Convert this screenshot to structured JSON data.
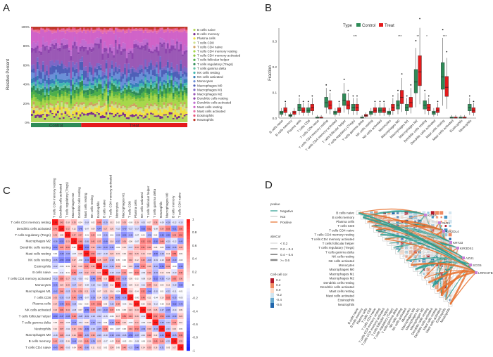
{
  "panels": {
    "a": "A",
    "b": "B",
    "c": "C",
    "d": "D"
  },
  "chart_data": [
    {
      "type": "bar",
      "panel": "A",
      "ylabel": "Relative Percent",
      "yticks": [
        "0%",
        "20%",
        "40%",
        "60%",
        "80%",
        "100%"
      ],
      "ylim": [
        0,
        100
      ],
      "groups": [
        {
          "name": "Control",
          "color": "#2e8b57",
          "n_samples": 27
        },
        {
          "name": "Treat",
          "color": "#e41a1c",
          "n_samples": 57
        }
      ],
      "legend_placement": "right",
      "cell_types": [
        {
          "name": "B cells naive",
          "color": "#b4d85b",
          "mean": 6
        },
        {
          "name": "B cells memory",
          "color": "#7b2e8f",
          "mean": 2
        },
        {
          "name": "Plasma cells",
          "color": "#f0e040",
          "mean": 5
        },
        {
          "name": "T cells CD8",
          "color": "#cfe090",
          "mean": 3
        },
        {
          "name": "T cells CD4 naive",
          "color": "#d0a060",
          "mean": 2
        },
        {
          "name": "T cells CD4 memory resting",
          "color": "#a6d84a",
          "mean": 6
        },
        {
          "name": "T cells CD4 memory activated",
          "color": "#8cc63f",
          "mean": 3
        },
        {
          "name": "T cells follicular helper",
          "color": "#4daf4a",
          "mean": 4
        },
        {
          "name": "T cells regulatory (Tregs)",
          "color": "#2e8b57",
          "mean": 4
        },
        {
          "name": "T cells gamma delta",
          "color": "#66c2a5",
          "mean": 2
        },
        {
          "name": "NK cells resting",
          "color": "#3fb8b0",
          "mean": 3
        },
        {
          "name": "NK cells activated",
          "color": "#377eb8",
          "mean": 3
        },
        {
          "name": "Monocytes",
          "color": "#6a8fd8",
          "mean": 5
        },
        {
          "name": "Macrophages M0",
          "color": "#4e5fb8",
          "mean": 6
        },
        {
          "name": "Macrophages M1",
          "color": "#7b68c8",
          "mean": 4
        },
        {
          "name": "Macrophages M2",
          "color": "#9b59b6",
          "mean": 16
        },
        {
          "name": "Dendritic cells resting",
          "color": "#8e44ad",
          "mean": 4
        },
        {
          "name": "Dendritic cells activated",
          "color": "#c06cd0",
          "mean": 5
        },
        {
          "name": "Mast cells resting",
          "color": "#d063c8",
          "mean": 12
        },
        {
          "name": "Mast cells activated",
          "color": "#e76fa8",
          "mean": 2
        },
        {
          "name": "Eosinophils",
          "color": "#e8527a",
          "mean": 1
        },
        {
          "name": "Neutrophils",
          "color": "#c0392b",
          "mean": 2
        }
      ]
    },
    {
      "type": "box",
      "panel": "B",
      "ylabel": "Fraction",
      "legend_title": "Type",
      "yticks": [
        "0.0",
        "0.1",
        "0.2",
        "0.3"
      ],
      "ylim": [
        0,
        0.35
      ],
      "series": [
        {
          "name": "Control",
          "color": "#2e8b57"
        },
        {
          "name": "Treat",
          "color": "#e41a1c"
        }
      ],
      "categories": [
        "B cells naive",
        "B cells memory",
        "Plasma cells",
        "T cells CD8",
        "T cells CD4 naive",
        "T cells CD4 memory resting",
        "T cells CD4 memory activated",
        "T cells follicular helper",
        "T cells regulatory (Tregs)",
        "T cells gamma delta",
        "NK cells resting",
        "NK cells activated",
        "Monocytes",
        "Macrophages M0",
        "Macrophages M1",
        "Macrophages M2",
        "Dendritic cells resting",
        "Dendritic cells activated",
        "Mast cells resting",
        "Mast cells activated",
        "Eosinophils",
        "Neutrophils"
      ],
      "control_median": [
        0.02,
        0.01,
        0.04,
        0.03,
        0.0,
        0.06,
        0.02,
        0.07,
        0.04,
        0.0,
        0.02,
        0.03,
        0.02,
        0.05,
        0.04,
        0.14,
        0.05,
        0.02,
        0.16,
        0.0,
        0.0,
        0.04
      ],
      "treat_median": [
        0.03,
        0.02,
        0.03,
        0.04,
        0.0,
        0.05,
        0.03,
        0.05,
        0.04,
        0.01,
        0.03,
        0.03,
        0.04,
        0.08,
        0.06,
        0.18,
        0.04,
        0.03,
        0.12,
        0.0,
        0.0,
        0.03
      ],
      "significance": [
        {
          "category": "T cells regulatory (Tregs)",
          "label": "***"
        },
        {
          "category": "Macrophages M0",
          "label": "***"
        },
        {
          "category": "Macrophages M2",
          "label": "**"
        },
        {
          "category": "Dendritic cells resting",
          "label": "*"
        },
        {
          "category": "Mast cells resting",
          "label": "***"
        }
      ]
    },
    {
      "type": "heatmap",
      "panel": "C",
      "rows": [
        "T cells CD4 memory resting",
        "Dendritic cells activated",
        "T cells regulatory (Tregs)",
        "Macrophages M2",
        "Dendritic cells resting",
        "Mast cells resting",
        "NK cells resting",
        "Eosinophils",
        "B cells naive",
        "T cells CD4 memory activated",
        "Monocytes",
        "Macrophages M1",
        "T cells CD8",
        "Plasma cells",
        "NK cells activated",
        "T cells follicular helper",
        "T cells gamma delta",
        "Neutrophils",
        "Macrophages M0",
        "B cells memory",
        "T cells CD4 naive"
      ],
      "colorbar_ticks": [
        "1",
        "0.8",
        "0.6",
        "0.4",
        "0.2",
        "0",
        "-0.2",
        "-0.4",
        "-0.6",
        "-0.8",
        "-1"
      ]
    },
    {
      "type": "network",
      "panel": "D",
      "legend_pvalue_title": "pvalue",
      "pvalue_items": [
        "Negative",
        "Not",
        "Positive"
      ],
      "abscor_title": "absCor",
      "abscor_items": [
        "< 0.2",
        "0.2 ~ 0.4",
        "0.4 ~ 0.6",
        ">= 0.6"
      ],
      "cellcor_title": "Cell-cell cor",
      "cellcor_ticks": [
        "0.4",
        "0.2",
        "0.0",
        "-0.2",
        "-0.4",
        "-0.6"
      ],
      "genes": [
        "KIF4A",
        "OLR1",
        "KIR2DL4",
        "KRT23",
        "KIR3DS1",
        "AZU1",
        "SCG5",
        "LRRC37B"
      ],
      "cells": [
        "B cells naive",
        "B cells memory",
        "Plasma cells",
        "T cells CD8",
        "T cells CD4 naive",
        "T cells CD4 memory resting",
        "T cells CD4 memory activated",
        "T cells follicular helper",
        "T cells regulatory (Tregs)",
        "T cells gamma delta",
        "NK cells resting",
        "NK cells activated",
        "Monocytes",
        "Macrophages M0",
        "Macrophages M1",
        "Macrophages M2",
        "Dendritic cells resting",
        "Dendritic cells activated",
        "Mast cells resting",
        "Mast cells activated",
        "Eosinophils",
        "Neutrophils"
      ]
    }
  ]
}
